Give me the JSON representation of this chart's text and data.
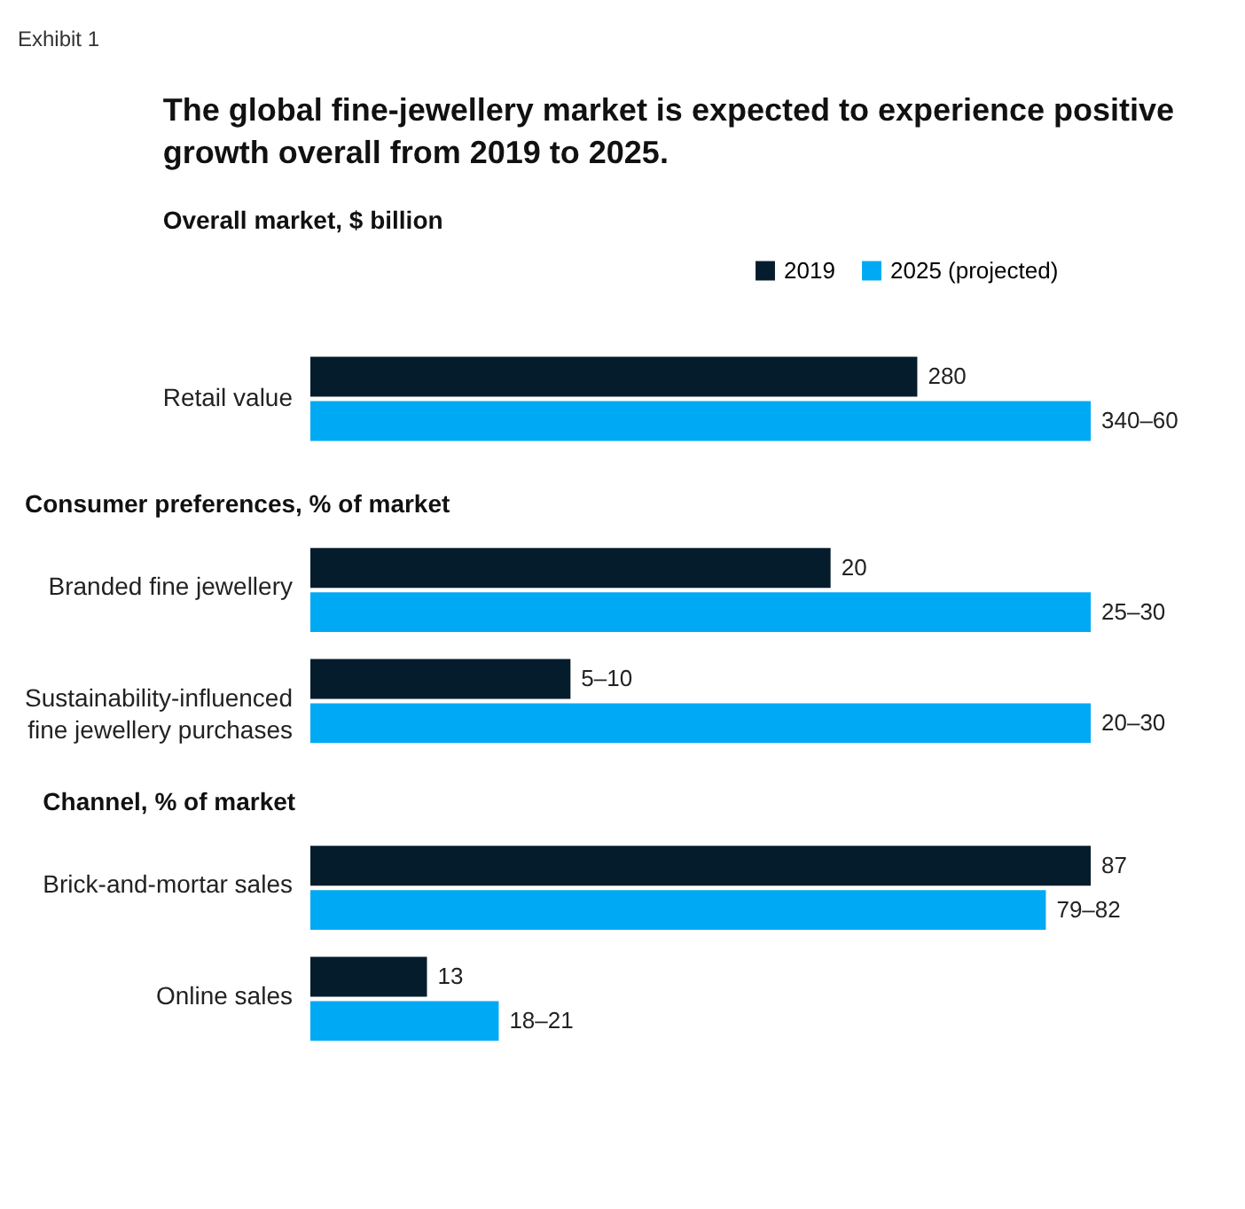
{
  "chart_data": [
    {
      "type": "bar",
      "orientation": "horizontal",
      "title": "The global fine-jewellery market is expected to experience positive growth overall from 2019 to 2025.",
      "subtitle": "Overall market, $ billion",
      "annotations": [
        "Exhibit 1"
      ],
      "legend": "top right",
      "categories": [
        "Retail value"
      ],
      "series": [
        {
          "name": "2019",
          "color": "#051c2c",
          "values": [
            280
          ],
          "value_labels": [
            "280"
          ]
        },
        {
          "name": "2025 (projected)",
          "color": "#00a9f4",
          "values": [
            360
          ],
          "value_labels": [
            "340–60"
          ]
        }
      ]
    },
    {
      "type": "bar",
      "orientation": "horizontal",
      "subtitle": "Consumer preferences, % of market",
      "categories": [
        "Branded fine jewellery",
        "Sustainability-influenced fine jewellery purchases"
      ],
      "series": [
        {
          "name": "2019",
          "color": "#051c2c",
          "values": [
            20,
            10
          ],
          "value_labels": [
            "20",
            "5–10"
          ]
        },
        {
          "name": "2025 (projected)",
          "color": "#00a9f4",
          "values": [
            30,
            30
          ],
          "value_labels": [
            "25–30",
            "20–30"
          ]
        }
      ]
    },
    {
      "type": "bar",
      "orientation": "horizontal",
      "subtitle": "Channel, % of market",
      "categories": [
        "Brick-and-mortar sales",
        "Online sales"
      ],
      "series": [
        {
          "name": "2019",
          "color": "#051c2c",
          "values": [
            87,
            13
          ],
          "value_labels": [
            "87",
            "13"
          ]
        },
        {
          "name": "2025 (projected)",
          "color": "#00a9f4",
          "values": [
            82,
            21
          ],
          "value_labels": [
            "79–82",
            "18–21"
          ]
        }
      ]
    }
  ]
}
